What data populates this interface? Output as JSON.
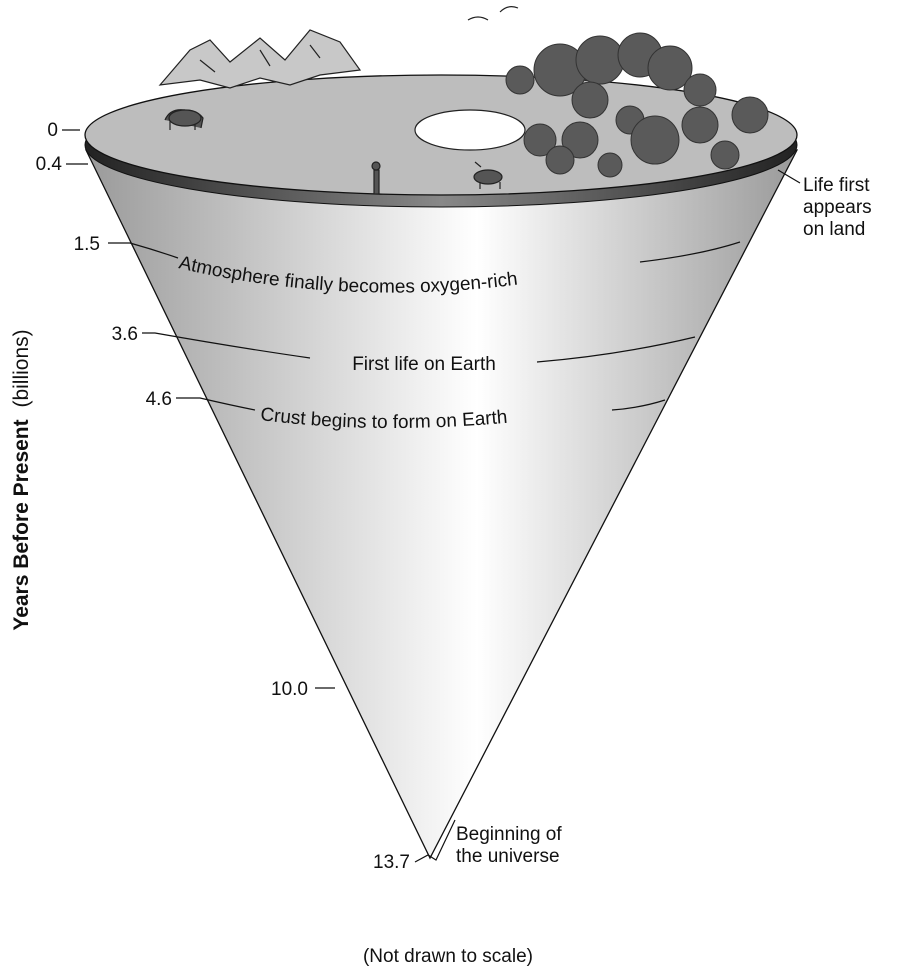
{
  "axis_label": {
    "bold": "Years Before Present",
    "normal": "(billions)"
  },
  "ticks": [
    "0",
    "0.4",
    "1.5",
    "3.6",
    "4.6",
    "10.0",
    "13.7"
  ],
  "events": {
    "atmosphere": "Atmosphere finally becomes oxygen-rich",
    "first_life": "First life on Earth",
    "crust": "Crust begins to form on Earth",
    "land_life": [
      "Life first",
      "appears",
      "on land"
    ],
    "beginning": [
      "Beginning of",
      "the universe"
    ]
  },
  "note": "(Not drawn to scale)"
}
